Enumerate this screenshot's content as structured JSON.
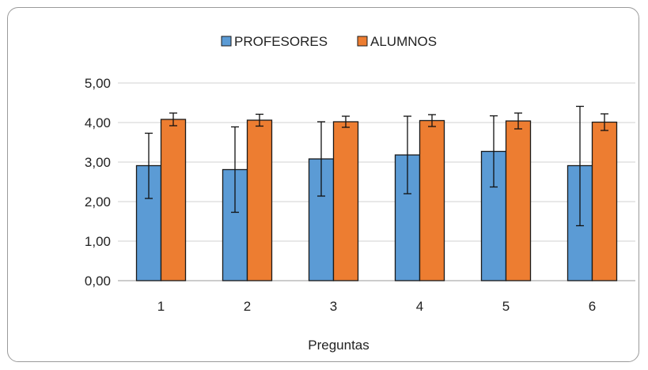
{
  "chart_data": {
    "type": "bar",
    "title": "",
    "xlabel": "Preguntas",
    "ylabel": "",
    "categories": [
      "1",
      "2",
      "3",
      "4",
      "5",
      "6"
    ],
    "ylim": [
      0,
      5
    ],
    "yticks": [
      "0,00",
      "1,00",
      "2,00",
      "3,00",
      "4,00",
      "5,00"
    ],
    "grid": true,
    "legend_position": "top",
    "series": [
      {
        "name": "PROFESORES",
        "color": "#5b9bd5",
        "values": [
          2.91,
          2.81,
          3.08,
          3.18,
          3.27,
          2.91
        ],
        "error_low": [
          2.08,
          1.73,
          2.14,
          2.2,
          2.37,
          1.39
        ],
        "error_high": [
          3.73,
          3.89,
          4.02,
          4.16,
          4.17,
          4.41
        ]
      },
      {
        "name": "ALUMNOS",
        "color": "#ed7d31",
        "values": [
          4.08,
          4.06,
          4.02,
          4.05,
          4.04,
          4.01
        ],
        "error_low": [
          3.92,
          3.91,
          3.88,
          3.9,
          3.84,
          3.8
        ],
        "error_high": [
          4.24,
          4.21,
          4.16,
          4.2,
          4.24,
          4.22
        ]
      }
    ]
  }
}
